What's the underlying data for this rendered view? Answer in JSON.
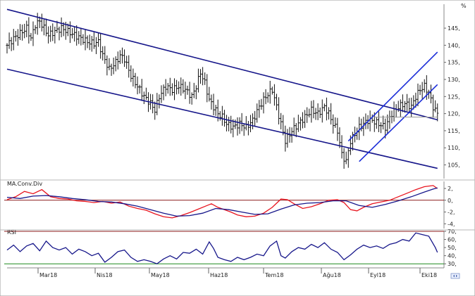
{
  "chart_data": [
    {
      "type": "ohlc",
      "panel": "price",
      "title": "",
      "ylim": [
        101,
        152
      ],
      "y_ticks": [
        105,
        110,
        115,
        120,
        125,
        130,
        135,
        140,
        145
      ],
      "y_tick_labels": [
        "105,",
        "110,",
        "115,",
        "120,",
        "125,",
        "130,",
        "135,",
        "140,",
        "145,"
      ],
      "corner_label": "%",
      "x_tick_labels": [
        "Mar18",
        "Nis18",
        "May18",
        "Haz18",
        "Tem18",
        "Ağu18",
        "Eyl18",
        "Eki18"
      ],
      "close_path": [
        [
          0,
          140
        ],
        [
          3,
          142
        ],
        [
          6,
          143.5
        ],
        [
          9,
          145
        ],
        [
          11,
          142
        ],
        [
          13,
          146
        ],
        [
          15,
          147
        ],
        [
          17,
          145
        ],
        [
          19,
          143
        ],
        [
          22,
          144
        ],
        [
          25,
          145
        ],
        [
          28,
          144
        ],
        [
          31,
          143
        ],
        [
          34,
          142
        ],
        [
          37,
          141
        ],
        [
          40,
          140.5
        ],
        [
          42,
          141
        ],
        [
          44,
          137
        ],
        [
          47,
          133
        ],
        [
          50,
          135
        ],
        [
          52,
          137
        ],
        [
          54,
          136
        ],
        [
          57,
          131
        ],
        [
          60,
          128
        ],
        [
          63,
          125
        ],
        [
          66,
          123
        ],
        [
          68,
          121
        ],
        [
          70,
          125
        ],
        [
          73,
          128
        ],
        [
          76,
          127
        ],
        [
          79,
          128
        ],
        [
          82,
          127
        ],
        [
          85,
          125
        ],
        [
          87,
          128
        ],
        [
          89,
          132
        ],
        [
          91,
          129
        ],
        [
          93,
          124
        ],
        [
          95,
          122
        ],
        [
          97,
          120
        ],
        [
          99,
          119
        ],
        [
          101,
          117
        ],
        [
          104,
          116
        ],
        [
          107,
          117
        ],
        [
          110,
          116
        ],
        [
          113,
          118
        ],
        [
          116,
          122
        ],
        [
          119,
          125
        ],
        [
          122,
          127
        ],
        [
          124,
          122
        ],
        [
          126,
          117
        ],
        [
          128,
          112
        ],
        [
          131,
          115
        ],
        [
          134,
          117
        ],
        [
          137,
          119
        ],
        [
          140,
          121
        ],
        [
          143,
          120
        ],
        [
          146,
          122
        ],
        [
          148,
          120
        ],
        [
          150,
          117
        ],
        [
          152,
          115
        ],
        [
          154,
          108
        ],
        [
          156,
          106
        ],
        [
          158,
          112
        ],
        [
          160,
          114
        ],
        [
          162,
          116
        ],
        [
          164,
          117
        ],
        [
          166,
          118
        ],
        [
          168,
          118
        ],
        [
          171,
          117
        ],
        [
          174,
          116
        ],
        [
          177,
          120
        ],
        [
          180,
          122
        ],
        [
          183,
          123
        ],
        [
          186,
          122
        ],
        [
          188,
          125
        ],
        [
          190,
          127
        ],
        [
          192,
          128
        ],
        [
          194,
          126
        ],
        [
          196,
          122
        ],
        [
          198,
          120
        ]
      ],
      "channel_lines": [
        {
          "name": "",
          "color": "#16168a",
          "points": [
            [
              0,
              150.5
            ],
            [
              198,
              118.2
            ]
          ]
        },
        {
          "name": "",
          "color": "#16168a",
          "points": [
            [
              0,
              133
            ],
            [
              198,
              104
            ]
          ]
        },
        {
          "name": "",
          "color": "#1a2cd8",
          "points": [
            [
              157,
              112
            ],
            [
              198,
              138
            ]
          ]
        },
        {
          "name": "",
          "color": "#1a2cd8",
          "points": [
            [
              162,
              106
            ],
            [
              198,
              128.5
            ]
          ]
        },
        {
          "name": "",
          "color": "#999999",
          "points": [
            [
              169,
              119
            ],
            [
              198,
              119
            ]
          ]
        }
      ],
      "x_range": [
        0,
        201
      ]
    },
    {
      "type": "line",
      "panel": "macd",
      "title": "MA.Conv.Div",
      "ylim": [
        -4.8,
        3.2
      ],
      "y_ticks": [
        2,
        0,
        -2,
        -4
      ],
      "y_tick_labels": [
        "2,",
        "0,",
        "-2,",
        "-4,"
      ],
      "reference_lines": [
        {
          "value": 0,
          "color": "#8b1a1a"
        }
      ],
      "series": [
        {
          "name": "",
          "color": "#e8141e",
          "points": [
            [
              0,
              0.1
            ],
            [
              4,
              0.6
            ],
            [
              8,
              1.5
            ],
            [
              12,
              1.1
            ],
            [
              16,
              1.8
            ],
            [
              20,
              0.6
            ],
            [
              24,
              0.3
            ],
            [
              28,
              0.2
            ],
            [
              32,
              -0.1
            ],
            [
              36,
              -0.2
            ],
            [
              40,
              -0.4
            ],
            [
              44,
              -0.2
            ],
            [
              48,
              -0.5
            ],
            [
              52,
              -0.3
            ],
            [
              56,
              -1.0
            ],
            [
              60,
              -1.4
            ],
            [
              64,
              -1.7
            ],
            [
              68,
              -2.3
            ],
            [
              72,
              -2.8
            ],
            [
              76,
              -3.0
            ],
            [
              80,
              -2.6
            ],
            [
              84,
              -2.1
            ],
            [
              88,
              -1.5
            ],
            [
              92,
              -0.9
            ],
            [
              94,
              -0.6
            ],
            [
              97,
              -1.2
            ],
            [
              100,
              -1.6
            ],
            [
              103,
              -2.0
            ],
            [
              106,
              -2.5
            ],
            [
              110,
              -2.8
            ],
            [
              114,
              -2.7
            ],
            [
              118,
              -2.2
            ],
            [
              122,
              -1.2
            ],
            [
              126,
              0.2
            ],
            [
              129,
              0.1
            ],
            [
              132,
              -0.6
            ],
            [
              136,
              -1.4
            ],
            [
              140,
              -1.1
            ],
            [
              144,
              -0.6
            ],
            [
              148,
              0.0
            ],
            [
              152,
              0.1
            ],
            [
              155,
              -0.4
            ],
            [
              158,
              -1.6
            ],
            [
              161,
              -1.8
            ],
            [
              164,
              -1.2
            ],
            [
              168,
              -0.6
            ],
            [
              172,
              -0.3
            ],
            [
              176,
              0.0
            ],
            [
              180,
              0.6
            ],
            [
              184,
              1.2
            ],
            [
              188,
              1.8
            ],
            [
              192,
              2.3
            ],
            [
              196,
              2.5
            ],
            [
              198,
              2.0
            ]
          ]
        },
        {
          "name": "",
          "color": "#16168a",
          "points": [
            [
              0,
              0.5
            ],
            [
              6,
              0.3
            ],
            [
              12,
              0.7
            ],
            [
              18,
              0.8
            ],
            [
              24,
              0.6
            ],
            [
              30,
              0.3
            ],
            [
              36,
              0.1
            ],
            [
              42,
              -0.2
            ],
            [
              48,
              -0.3
            ],
            [
              54,
              -0.6
            ],
            [
              60,
              -1.0
            ],
            [
              66,
              -1.6
            ],
            [
              72,
              -2.2
            ],
            [
              78,
              -2.7
            ],
            [
              84,
              -2.6
            ],
            [
              90,
              -2.2
            ],
            [
              96,
              -1.4
            ],
            [
              102,
              -1.6
            ],
            [
              108,
              -2.0
            ],
            [
              114,
              -2.4
            ],
            [
              120,
              -2.3
            ],
            [
              126,
              -1.5
            ],
            [
              132,
              -0.8
            ],
            [
              138,
              -0.5
            ],
            [
              144,
              -0.4
            ],
            [
              150,
              -0.1
            ],
            [
              156,
              -0.1
            ],
            [
              162,
              -0.9
            ],
            [
              168,
              -1.2
            ],
            [
              174,
              -0.7
            ],
            [
              180,
              -0.1
            ],
            [
              186,
              0.6
            ],
            [
              192,
              1.4
            ],
            [
              196,
              1.9
            ],
            [
              198,
              2.1
            ]
          ]
        }
      ]
    },
    {
      "type": "line",
      "panel": "rsi",
      "title": "RSI",
      "ylim": [
        25,
        70
      ],
      "y_ticks": [
        70,
        60,
        50,
        40,
        30
      ],
      "y_tick_labels": [
        "70,",
        "60,",
        "50,",
        "40,",
        "30,"
      ],
      "reference_lines": [
        {
          "value": 70,
          "color": "#8b1a1a"
        },
        {
          "value": 30,
          "color": "#1e8a1e"
        }
      ],
      "series": [
        {
          "name": "",
          "color": "#16168a",
          "points": [
            [
              0,
              47
            ],
            [
              3,
              53
            ],
            [
              6,
              45
            ],
            [
              9,
              52
            ],
            [
              12,
              55
            ],
            [
              15,
              46
            ],
            [
              18,
              58
            ],
            [
              21,
              50
            ],
            [
              24,
              47
            ],
            [
              27,
              50
            ],
            [
              30,
              42
            ],
            [
              33,
              48
            ],
            [
              36,
              45
            ],
            [
              39,
              40
            ],
            [
              42,
              43
            ],
            [
              45,
              32
            ],
            [
              48,
              38
            ],
            [
              51,
              45
            ],
            [
              54,
              47
            ],
            [
              57,
              38
            ],
            [
              60,
              33
            ],
            [
              63,
              35
            ],
            [
              66,
              33
            ],
            [
              69,
              30
            ],
            [
              72,
              36
            ],
            [
              75,
              40
            ],
            [
              78,
              36
            ],
            [
              81,
              44
            ],
            [
              84,
              43
            ],
            [
              87,
              48
            ],
            [
              90,
              42
            ],
            [
              93,
              57
            ],
            [
              95,
              49
            ],
            [
              97,
              38
            ],
            [
              100,
              35
            ],
            [
              103,
              33
            ],
            [
              106,
              38
            ],
            [
              109,
              35
            ],
            [
              112,
              38
            ],
            [
              115,
              42
            ],
            [
              118,
              40
            ],
            [
              121,
              52
            ],
            [
              124,
              58
            ],
            [
              126,
              40
            ],
            [
              128,
              37
            ],
            [
              131,
              45
            ],
            [
              134,
              50
            ],
            [
              137,
              48
            ],
            [
              140,
              54
            ],
            [
              143,
              50
            ],
            [
              146,
              56
            ],
            [
              149,
              48
            ],
            [
              152,
              44
            ],
            [
              155,
              35
            ],
            [
              158,
              41
            ],
            [
              161,
              48
            ],
            [
              164,
              53
            ],
            [
              167,
              50
            ],
            [
              170,
              52
            ],
            [
              173,
              49
            ],
            [
              176,
              54
            ],
            [
              179,
              56
            ],
            [
              182,
              60
            ],
            [
              185,
              58
            ],
            [
              188,
              68
            ],
            [
              191,
              66
            ],
            [
              194,
              64
            ],
            [
              197,
              50
            ],
            [
              198,
              44
            ]
          ]
        }
      ]
    }
  ]
}
